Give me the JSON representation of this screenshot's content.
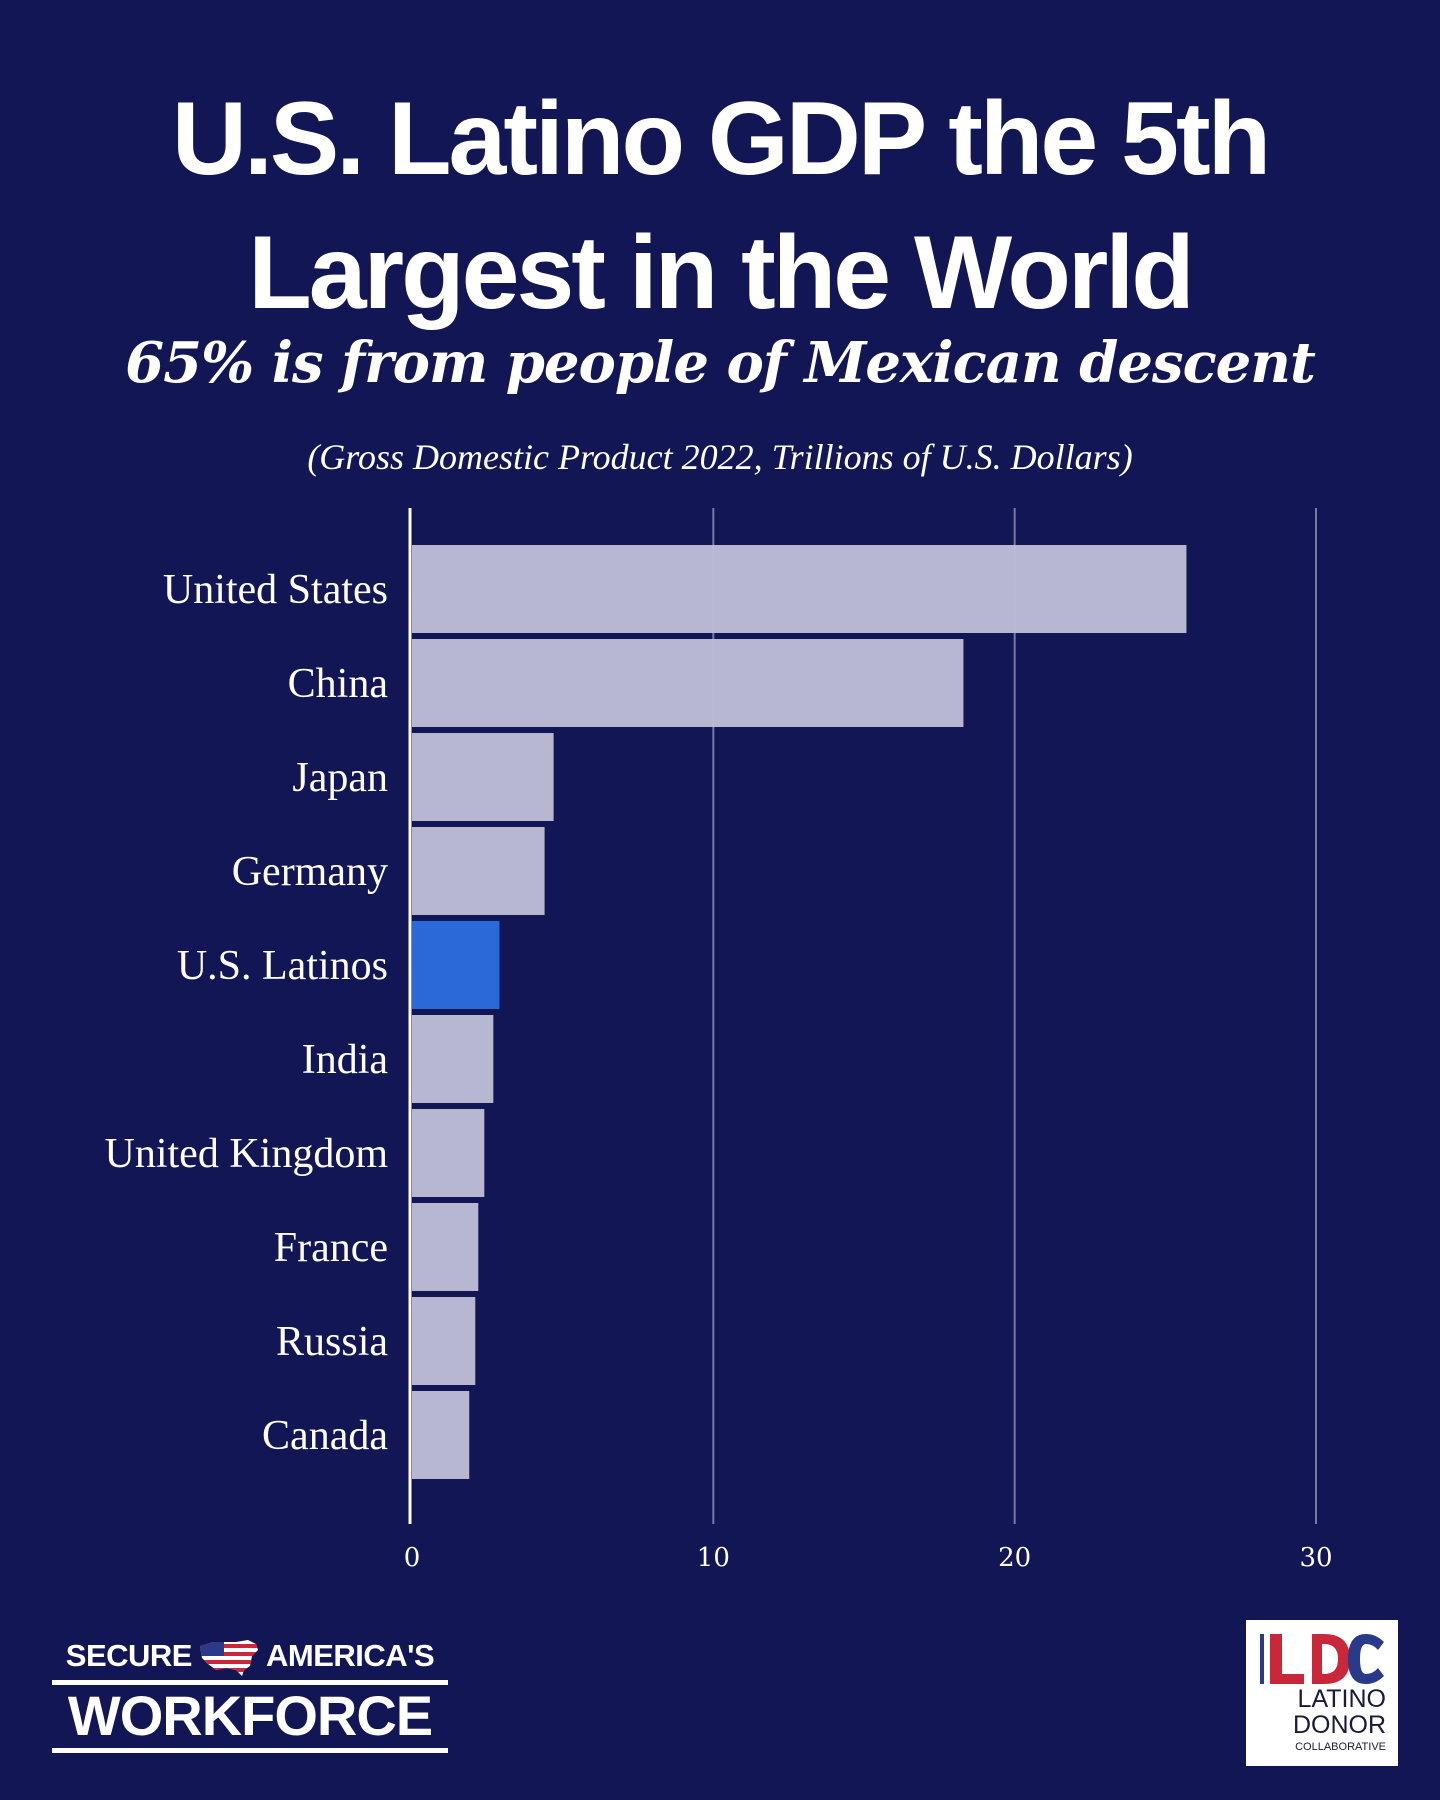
{
  "chart_data": {
    "type": "bar",
    "orientation": "horizontal",
    "title": "U.S. Latino GDP the 5th Largest in the World",
    "subtitle": "65% is from people of Mexican descent",
    "note": "(Gross Domestic Product 2022, Trillions of U.S. Dollars)",
    "categories": [
      "United States",
      "China",
      "Japan",
      "Germany",
      "U.S. Latinos",
      "India",
      "United Kingdom",
      "France",
      "Russia",
      "Canada"
    ],
    "values": [
      25.7,
      18.3,
      4.7,
      4.4,
      2.9,
      2.7,
      2.4,
      2.2,
      2.1,
      1.9
    ],
    "highlight": "U.S. Latinos",
    "colors": {
      "default": "#bdbdd6",
      "highlight": "#2a6ad8",
      "background": "#131654",
      "grid": "#9a9cc0"
    },
    "xlim": [
      0,
      30
    ],
    "xticks": [
      0,
      10,
      20,
      30
    ],
    "grid": true,
    "xlabel": "",
    "ylabel": ""
  },
  "logos": {
    "left": {
      "line1_a": "SECURE",
      "line1_b": "AMERICA'S",
      "line2": "WORKFORCE",
      "icon": "us-flag-map-icon"
    },
    "right": {
      "mark": "LDC",
      "line1": "LATINO",
      "line2": "DONOR",
      "line3": "COLLABORATIVE"
    }
  }
}
